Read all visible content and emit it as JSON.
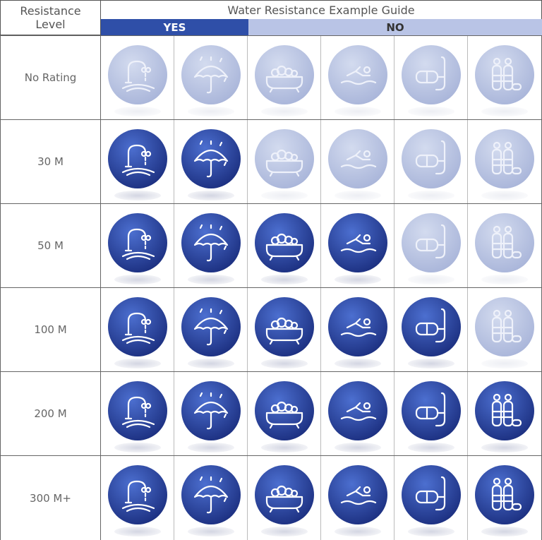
{
  "header": {
    "level_label": "Resistance\nLevel",
    "title": "Water Resistance Example Guide",
    "yes_label": "YES",
    "no_label": "NO"
  },
  "colors": {
    "active": "#2a45a0",
    "inactive": "#b3bedf",
    "yes_bar": "#2f4fa8",
    "no_bar": "#b9c4e6"
  },
  "activities": [
    "faucet-icon",
    "umbrella-icon",
    "bathtub-icon",
    "swimmer-icon",
    "snorkel-icon",
    "scuba-tank-icon"
  ],
  "rows": [
    {
      "label": "No Rating",
      "active_count": 0
    },
    {
      "label": "30 M",
      "active_count": 2
    },
    {
      "label": "50 M",
      "active_count": 4
    },
    {
      "label": "100 M",
      "active_count": 5
    },
    {
      "label": "200 M",
      "active_count": 6
    },
    {
      "label": "300 M+",
      "active_count": 6
    }
  ]
}
